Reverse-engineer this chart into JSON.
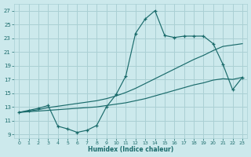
{
  "xlabel": "Humidex (Indice chaleur)",
  "xlim": [
    -0.5,
    23.5
  ],
  "ylim": [
    8.5,
    28.0
  ],
  "xticks": [
    0,
    1,
    2,
    3,
    4,
    5,
    6,
    7,
    8,
    9,
    10,
    11,
    12,
    13,
    14,
    15,
    16,
    17,
    18,
    19,
    20,
    21,
    22,
    23
  ],
  "yticks": [
    9,
    11,
    13,
    15,
    17,
    19,
    21,
    23,
    25,
    27
  ],
  "bg_color": "#cce9ec",
  "grid_color": "#aad0d4",
  "line_color": "#1a6b6b",
  "line1_x": [
    0,
    1,
    2,
    3,
    4,
    5,
    6,
    7,
    8,
    9,
    10,
    11,
    12,
    13,
    14,
    15,
    16,
    17,
    18,
    19,
    20,
    21,
    22,
    23
  ],
  "line1_y": [
    12.2,
    12.5,
    12.8,
    13.2,
    10.2,
    9.8,
    9.3,
    9.6,
    10.3,
    13.0,
    14.8,
    17.5,
    23.7,
    25.8,
    27.0,
    23.4,
    23.1,
    23.3,
    23.3,
    23.3,
    22.2,
    19.2,
    15.5,
    17.3
  ],
  "line2_x": [
    0,
    1,
    2,
    3,
    4,
    5,
    6,
    7,
    8,
    9,
    10,
    11,
    12,
    13,
    14,
    15,
    16,
    17,
    18,
    19,
    20,
    21,
    22,
    23
  ],
  "line2_y": [
    12.2,
    12.4,
    12.6,
    12.9,
    13.1,
    13.3,
    13.5,
    13.7,
    13.9,
    14.2,
    14.6,
    15.1,
    15.7,
    16.4,
    17.1,
    17.8,
    18.5,
    19.2,
    19.9,
    20.5,
    21.2,
    21.8,
    22.0,
    22.2
  ],
  "line3_x": [
    0,
    1,
    2,
    3,
    4,
    5,
    6,
    7,
    8,
    9,
    10,
    11,
    12,
    13,
    14,
    15,
    16,
    17,
    18,
    19,
    20,
    21,
    22,
    23
  ],
  "line3_y": [
    12.2,
    12.3,
    12.4,
    12.5,
    12.6,
    12.7,
    12.8,
    12.9,
    13.0,
    13.2,
    13.4,
    13.6,
    13.9,
    14.2,
    14.6,
    15.0,
    15.4,
    15.8,
    16.2,
    16.5,
    16.9,
    17.1,
    17.0,
    17.3
  ]
}
